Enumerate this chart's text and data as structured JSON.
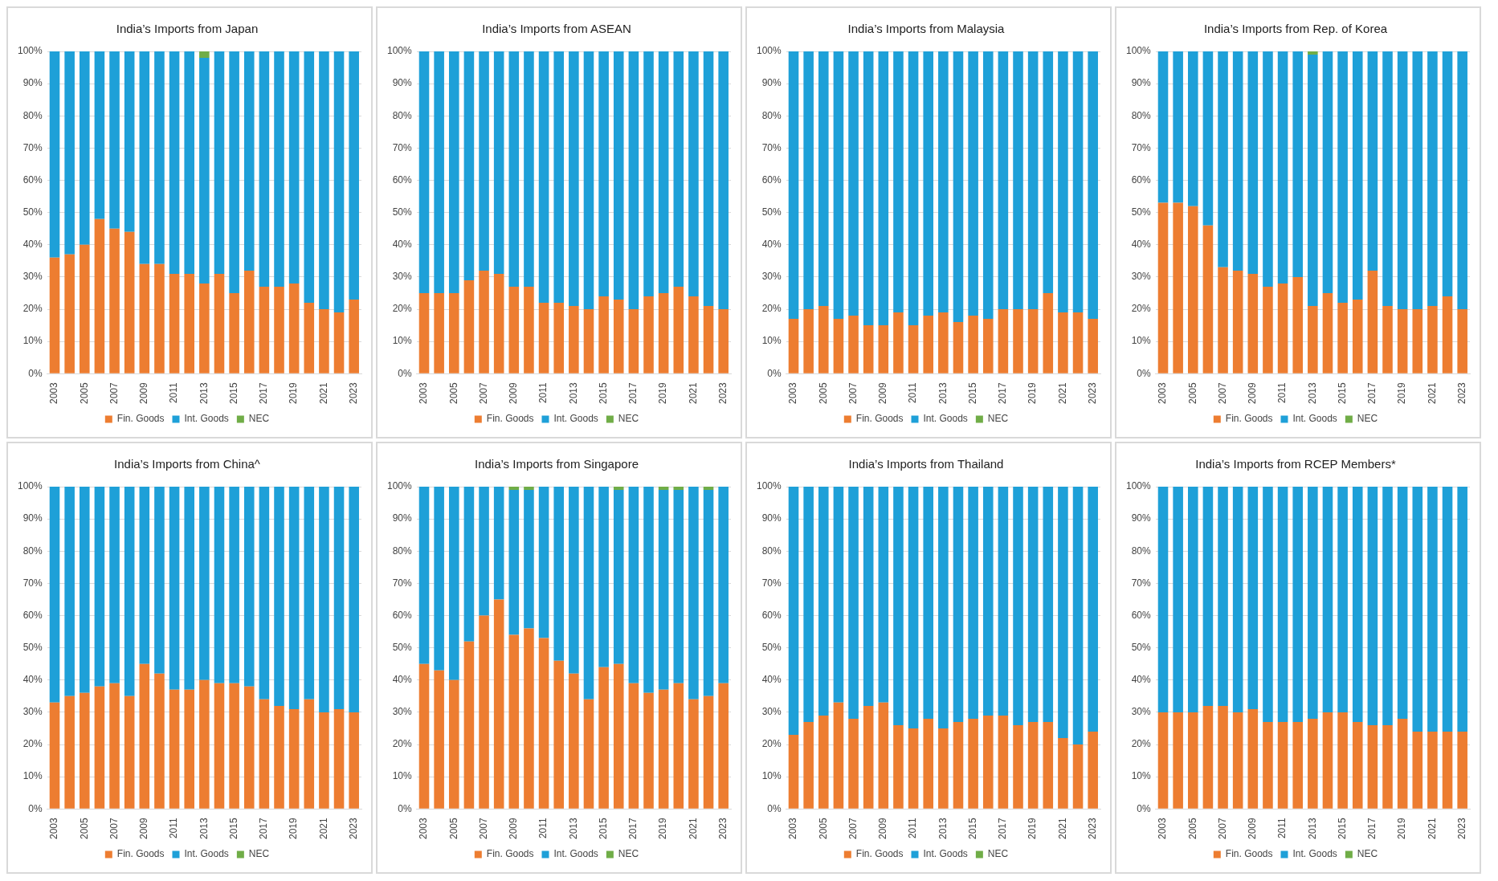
{
  "chart_data": [
    {
      "type": "bar",
      "stacked": true,
      "title": "India’s Imports from Japan",
      "categories": [
        "2003",
        null,
        "2005",
        null,
        "2007",
        null,
        "2009",
        null,
        "2011",
        null,
        "2013",
        null,
        "2015",
        null,
        "2017",
        null,
        "2019",
        null,
        "2021",
        null,
        "2023"
      ],
      "ylim": [
        0,
        100
      ],
      "yticks": [
        {
          "value": 0,
          "label": "0%"
        },
        {
          "value": 10,
          "label": "10%"
        },
        {
          "value": 20,
          "label": "20%"
        },
        {
          "value": 30,
          "label": "30%"
        },
        {
          "value": 40,
          "label": "40%"
        },
        {
          "value": 50,
          "label": "50%"
        },
        {
          "value": 60,
          "label": "60%"
        },
        {
          "value": 70,
          "label": "70%"
        },
        {
          "value": 80,
          "label": "80%"
        },
        {
          "value": 90,
          "label": "90%"
        },
        {
          "value": 100,
          "label": "100%"
        }
      ],
      "grid": "y",
      "legend": "bottom",
      "series": [
        {
          "name": "Fin. Goods",
          "color": "#ed7d31",
          "values": [
            36,
            37,
            40,
            48,
            45,
            44,
            34,
            34,
            31,
            31,
            28,
            31,
            25,
            32,
            27,
            27,
            28,
            22,
            20,
            19,
            23
          ]
        },
        {
          "name": "Int. Goods",
          "color": "#1ea0d8",
          "values": [
            64,
            63,
            60,
            52,
            55,
            56,
            66,
            66,
            69,
            69,
            70,
            69,
            75,
            68,
            73,
            73,
            72,
            78,
            80,
            81,
            77
          ]
        },
        {
          "name": "NEC",
          "color": "#70ad47",
          "values": [
            0,
            0,
            0,
            0,
            0,
            0,
            0,
            0,
            0,
            0,
            2,
            0,
            0,
            0,
            0,
            0,
            0,
            0,
            0,
            0,
            0
          ]
        }
      ]
    },
    {
      "type": "bar",
      "stacked": true,
      "title": "India’s Imports from ASEAN",
      "categories": [
        "2003",
        null,
        "2005",
        null,
        "2007",
        null,
        "2009",
        null,
        "2011",
        null,
        "2013",
        null,
        "2015",
        null,
        "2017",
        null,
        "2019",
        null,
        "2021",
        null,
        "2023"
      ],
      "ylim": [
        0,
        100
      ],
      "yticks": [
        {
          "value": 0,
          "label": "0%"
        },
        {
          "value": 10,
          "label": "10%"
        },
        {
          "value": 20,
          "label": "20%"
        },
        {
          "value": 30,
          "label": "30%"
        },
        {
          "value": 40,
          "label": "40%"
        },
        {
          "value": 50,
          "label": "50%"
        },
        {
          "value": 60,
          "label": "60%"
        },
        {
          "value": 70,
          "label": "70%"
        },
        {
          "value": 80,
          "label": "80%"
        },
        {
          "value": 90,
          "label": "90%"
        },
        {
          "value": 100,
          "label": "100%"
        }
      ],
      "grid": "y",
      "legend": "bottom",
      "series": [
        {
          "name": "Fin. Goods",
          "color": "#ed7d31",
          "values": [
            25,
            25,
            25,
            29,
            32,
            31,
            27,
            27,
            22,
            22,
            21,
            20,
            24,
            23,
            20,
            24,
            25,
            27,
            24,
            21,
            20
          ]
        },
        {
          "name": "Int. Goods",
          "color": "#1ea0d8",
          "values": [
            75,
            75,
            75,
            71,
            68,
            69,
            73,
            73,
            78,
            78,
            79,
            80,
            76,
            77,
            80,
            76,
            75,
            73,
            76,
            79,
            80
          ]
        },
        {
          "name": "NEC",
          "color": "#70ad47",
          "values": [
            0,
            0,
            0,
            0,
            0,
            0,
            0,
            0,
            0,
            0,
            0,
            0,
            0,
            0,
            0,
            0,
            0,
            0,
            0,
            0,
            0
          ]
        }
      ]
    },
    {
      "type": "bar",
      "stacked": true,
      "title": "India’s Imports from Malaysia",
      "categories": [
        "2003",
        null,
        "2005",
        null,
        "2007",
        null,
        "2009",
        null,
        "2011",
        null,
        "2013",
        null,
        "2015",
        null,
        "2017",
        null,
        "2019",
        null,
        "2021",
        null,
        "2023"
      ],
      "ylim": [
        0,
        100
      ],
      "yticks": [
        {
          "value": 0,
          "label": "0%"
        },
        {
          "value": 10,
          "label": "10%"
        },
        {
          "value": 20,
          "label": "20%"
        },
        {
          "value": 30,
          "label": "30%"
        },
        {
          "value": 40,
          "label": "40%"
        },
        {
          "value": 50,
          "label": "50%"
        },
        {
          "value": 60,
          "label": "60%"
        },
        {
          "value": 70,
          "label": "70%"
        },
        {
          "value": 80,
          "label": "80%"
        },
        {
          "value": 90,
          "label": "90%"
        },
        {
          "value": 100,
          "label": "100%"
        }
      ],
      "grid": "y",
      "legend": "bottom",
      "series": [
        {
          "name": "Fin. Goods",
          "color": "#ed7d31",
          "values": [
            17,
            20,
            21,
            17,
            18,
            15,
            15,
            19,
            15,
            18,
            19,
            16,
            18,
            17,
            20,
            20,
            20,
            25,
            19,
            19,
            17
          ]
        },
        {
          "name": "Int. Goods",
          "color": "#1ea0d8",
          "values": [
            83,
            80,
            79,
            83,
            82,
            85,
            85,
            81,
            85,
            82,
            81,
            84,
            82,
            83,
            80,
            80,
            80,
            75,
            81,
            81,
            83
          ]
        },
        {
          "name": "NEC",
          "color": "#70ad47",
          "values": [
            0,
            0,
            0,
            0,
            0,
            0,
            0,
            0,
            0,
            0,
            0,
            0,
            0,
            0,
            0,
            0,
            0,
            0,
            0,
            0,
            0
          ]
        }
      ]
    },
    {
      "type": "bar",
      "stacked": true,
      "title": "India’s Imports from Rep. of Korea",
      "categories": [
        "2003",
        null,
        "2005",
        null,
        "2007",
        null,
        "2009",
        null,
        "2011",
        null,
        "2013",
        null,
        "2015",
        null,
        "2017",
        null,
        "2019",
        null,
        "2021",
        null,
        "2023"
      ],
      "ylim": [
        0,
        100
      ],
      "yticks": [
        {
          "value": 0,
          "label": "0%"
        },
        {
          "value": 10,
          "label": "10%"
        },
        {
          "value": 20,
          "label": "20%"
        },
        {
          "value": 30,
          "label": "30%"
        },
        {
          "value": 40,
          "label": "40%"
        },
        {
          "value": 50,
          "label": "50%"
        },
        {
          "value": 60,
          "label": "60%"
        },
        {
          "value": 70,
          "label": "70%"
        },
        {
          "value": 80,
          "label": "80%"
        },
        {
          "value": 90,
          "label": "90%"
        },
        {
          "value": 100,
          "label": "100%"
        }
      ],
      "grid": "y",
      "legend": "bottom",
      "series": [
        {
          "name": "Fin. Goods",
          "color": "#ed7d31",
          "values": [
            53,
            53,
            52,
            46,
            33,
            32,
            31,
            27,
            28,
            30,
            21,
            25,
            22,
            23,
            32,
            21,
            20,
            20,
            21,
            24,
            20
          ]
        },
        {
          "name": "Int. Goods",
          "color": "#1ea0d8",
          "values": [
            47,
            47,
            48,
            54,
            67,
            68,
            69,
            73,
            72,
            70,
            78,
            75,
            78,
            77,
            68,
            79,
            80,
            80,
            79,
            76,
            80
          ]
        },
        {
          "name": "NEC",
          "color": "#70ad47",
          "values": [
            0,
            0,
            0,
            0,
            0,
            0,
            0,
            0,
            0,
            0,
            1,
            0,
            0,
            0,
            0,
            0,
            0,
            0,
            0,
            0,
            0
          ]
        }
      ]
    },
    {
      "type": "bar",
      "stacked": true,
      "title": "India’s Imports from China^",
      "categories": [
        "2003",
        null,
        "2005",
        null,
        "2007",
        null,
        "2009",
        null,
        "2011",
        null,
        "2013",
        null,
        "2015",
        null,
        "2017",
        null,
        "2019",
        null,
        "2021",
        null,
        "2023"
      ],
      "ylim": [
        0,
        100
      ],
      "yticks": [
        {
          "value": 0,
          "label": "0%"
        },
        {
          "value": 10,
          "label": "10%"
        },
        {
          "value": 20,
          "label": "20%"
        },
        {
          "value": 30,
          "label": "30%"
        },
        {
          "value": 40,
          "label": "40%"
        },
        {
          "value": 50,
          "label": "50%"
        },
        {
          "value": 60,
          "label": "60%"
        },
        {
          "value": 70,
          "label": "70%"
        },
        {
          "value": 80,
          "label": "80%"
        },
        {
          "value": 90,
          "label": "90%"
        },
        {
          "value": 100,
          "label": "100%"
        }
      ],
      "grid": "y",
      "legend": "bottom",
      "series": [
        {
          "name": "Fin. Goods",
          "color": "#ed7d31",
          "values": [
            33,
            35,
            36,
            38,
            39,
            35,
            45,
            42,
            37,
            37,
            40,
            39,
            39,
            38,
            34,
            32,
            31,
            34,
            30,
            31,
            30
          ]
        },
        {
          "name": "Int. Goods",
          "color": "#1ea0d8",
          "values": [
            67,
            65,
            64,
            62,
            61,
            65,
            55,
            58,
            63,
            63,
            60,
            61,
            61,
            62,
            66,
            68,
            69,
            66,
            70,
            69,
            70
          ]
        },
        {
          "name": "NEC",
          "color": "#70ad47",
          "values": [
            0,
            0,
            0,
            0,
            0,
            0,
            0,
            0,
            0,
            0,
            0,
            0,
            0,
            0,
            0,
            0,
            0,
            0,
            0,
            0,
            0
          ]
        }
      ]
    },
    {
      "type": "bar",
      "stacked": true,
      "title": "India’s Imports from Singapore",
      "categories": [
        "2003",
        null,
        "2005",
        null,
        "2007",
        null,
        "2009",
        null,
        "2011",
        null,
        "2013",
        null,
        "2015",
        null,
        "2017",
        null,
        "2019",
        null,
        "2021",
        null,
        "2023"
      ],
      "ylim": [
        0,
        100
      ],
      "yticks": [
        {
          "value": 0,
          "label": "0%"
        },
        {
          "value": 10,
          "label": "10%"
        },
        {
          "value": 20,
          "label": "20%"
        },
        {
          "value": 30,
          "label": "30%"
        },
        {
          "value": 40,
          "label": "40%"
        },
        {
          "value": 50,
          "label": "50%"
        },
        {
          "value": 60,
          "label": "60%"
        },
        {
          "value": 70,
          "label": "70%"
        },
        {
          "value": 80,
          "label": "80%"
        },
        {
          "value": 90,
          "label": "90%"
        },
        {
          "value": 100,
          "label": "100%"
        }
      ],
      "grid": "y",
      "legend": "bottom",
      "series": [
        {
          "name": "Fin. Goods",
          "color": "#ed7d31",
          "values": [
            45,
            43,
            40,
            52,
            60,
            65,
            54,
            56,
            53,
            46,
            42,
            34,
            44,
            45,
            39,
            36,
            37,
            39,
            34,
            35,
            39
          ]
        },
        {
          "name": "Int. Goods",
          "color": "#1ea0d8",
          "values": [
            55,
            57,
            60,
            48,
            40,
            35,
            45,
            43,
            47,
            54,
            58,
            66,
            56,
            54,
            61,
            64,
            62,
            60,
            66,
            64,
            61
          ]
        },
        {
          "name": "NEC",
          "color": "#70ad47",
          "values": [
            0,
            0,
            0,
            0,
            0,
            0,
            1,
            1,
            0,
            0,
            0,
            0,
            0,
            1,
            0,
            0,
            1,
            1,
            0,
            1,
            0
          ]
        }
      ]
    },
    {
      "type": "bar",
      "stacked": true,
      "title": "India’s Imports from Thailand",
      "categories": [
        "2003",
        null,
        "2005",
        null,
        "2007",
        null,
        "2009",
        null,
        "2011",
        null,
        "2013",
        null,
        "2015",
        null,
        "2017",
        null,
        "2019",
        null,
        "2021",
        null,
        "2023"
      ],
      "ylim": [
        0,
        100
      ],
      "yticks": [
        {
          "value": 0,
          "label": "0%"
        },
        {
          "value": 10,
          "label": "10%"
        },
        {
          "value": 20,
          "label": "20%"
        },
        {
          "value": 30,
          "label": "30%"
        },
        {
          "value": 40,
          "label": "40%"
        },
        {
          "value": 50,
          "label": "50%"
        },
        {
          "value": 60,
          "label": "60%"
        },
        {
          "value": 70,
          "label": "70%"
        },
        {
          "value": 80,
          "label": "80%"
        },
        {
          "value": 90,
          "label": "90%"
        },
        {
          "value": 100,
          "label": "100%"
        }
      ],
      "grid": "y",
      "legend": "bottom",
      "series": [
        {
          "name": "Fin. Goods",
          "color": "#ed7d31",
          "values": [
            23,
            27,
            29,
            33,
            28,
            32,
            33,
            26,
            25,
            28,
            25,
            27,
            28,
            29,
            29,
            26,
            27,
            27,
            22,
            20,
            24
          ]
        },
        {
          "name": "Int. Goods",
          "color": "#1ea0d8",
          "values": [
            77,
            73,
            71,
            67,
            72,
            68,
            67,
            74,
            75,
            72,
            75,
            73,
            72,
            71,
            71,
            74,
            73,
            73,
            78,
            80,
            76
          ]
        },
        {
          "name": "NEC",
          "color": "#70ad47",
          "values": [
            0,
            0,
            0,
            0,
            0,
            0,
            0,
            0,
            0,
            0,
            0,
            0,
            0,
            0,
            0,
            0,
            0,
            0,
            0,
            0,
            0
          ]
        }
      ]
    },
    {
      "type": "bar",
      "stacked": true,
      "title": "India’s Imports from RCEP Members*",
      "categories": [
        "2003",
        null,
        "2005",
        null,
        "2007",
        null,
        "2009",
        null,
        "2011",
        null,
        "2013",
        null,
        "2015",
        null,
        "2017",
        null,
        "2019",
        null,
        "2021",
        null,
        "2023"
      ],
      "ylim": [
        0,
        100
      ],
      "yticks": [
        {
          "value": 0,
          "label": "0%"
        },
        {
          "value": 10,
          "label": "10%"
        },
        {
          "value": 20,
          "label": "20%"
        },
        {
          "value": 30,
          "label": "30%"
        },
        {
          "value": 40,
          "label": "40%"
        },
        {
          "value": 50,
          "label": "50%"
        },
        {
          "value": 60,
          "label": "60%"
        },
        {
          "value": 70,
          "label": "70%"
        },
        {
          "value": 80,
          "label": "80%"
        },
        {
          "value": 90,
          "label": "90%"
        },
        {
          "value": 100,
          "label": "100%"
        }
      ],
      "grid": "y",
      "legend": "bottom",
      "series": [
        {
          "name": "Fin. Goods",
          "color": "#ed7d31",
          "values": [
            30,
            30,
            30,
            32,
            32,
            30,
            31,
            27,
            27,
            27,
            28,
            30,
            30,
            27,
            26,
            26,
            28,
            24,
            24,
            24,
            24
          ]
        },
        {
          "name": "Int. Goods",
          "color": "#1ea0d8",
          "values": [
            70,
            70,
            70,
            68,
            68,
            70,
            69,
            73,
            73,
            73,
            72,
            70,
            70,
            73,
            74,
            74,
            72,
            76,
            76,
            76,
            76
          ]
        },
        {
          "name": "NEC",
          "color": "#70ad47",
          "values": [
            0,
            0,
            0,
            0,
            0,
            0,
            0,
            0,
            0,
            0,
            0,
            0,
            0,
            0,
            0,
            0,
            0,
            0,
            0,
            0,
            0
          ]
        }
      ]
    }
  ]
}
